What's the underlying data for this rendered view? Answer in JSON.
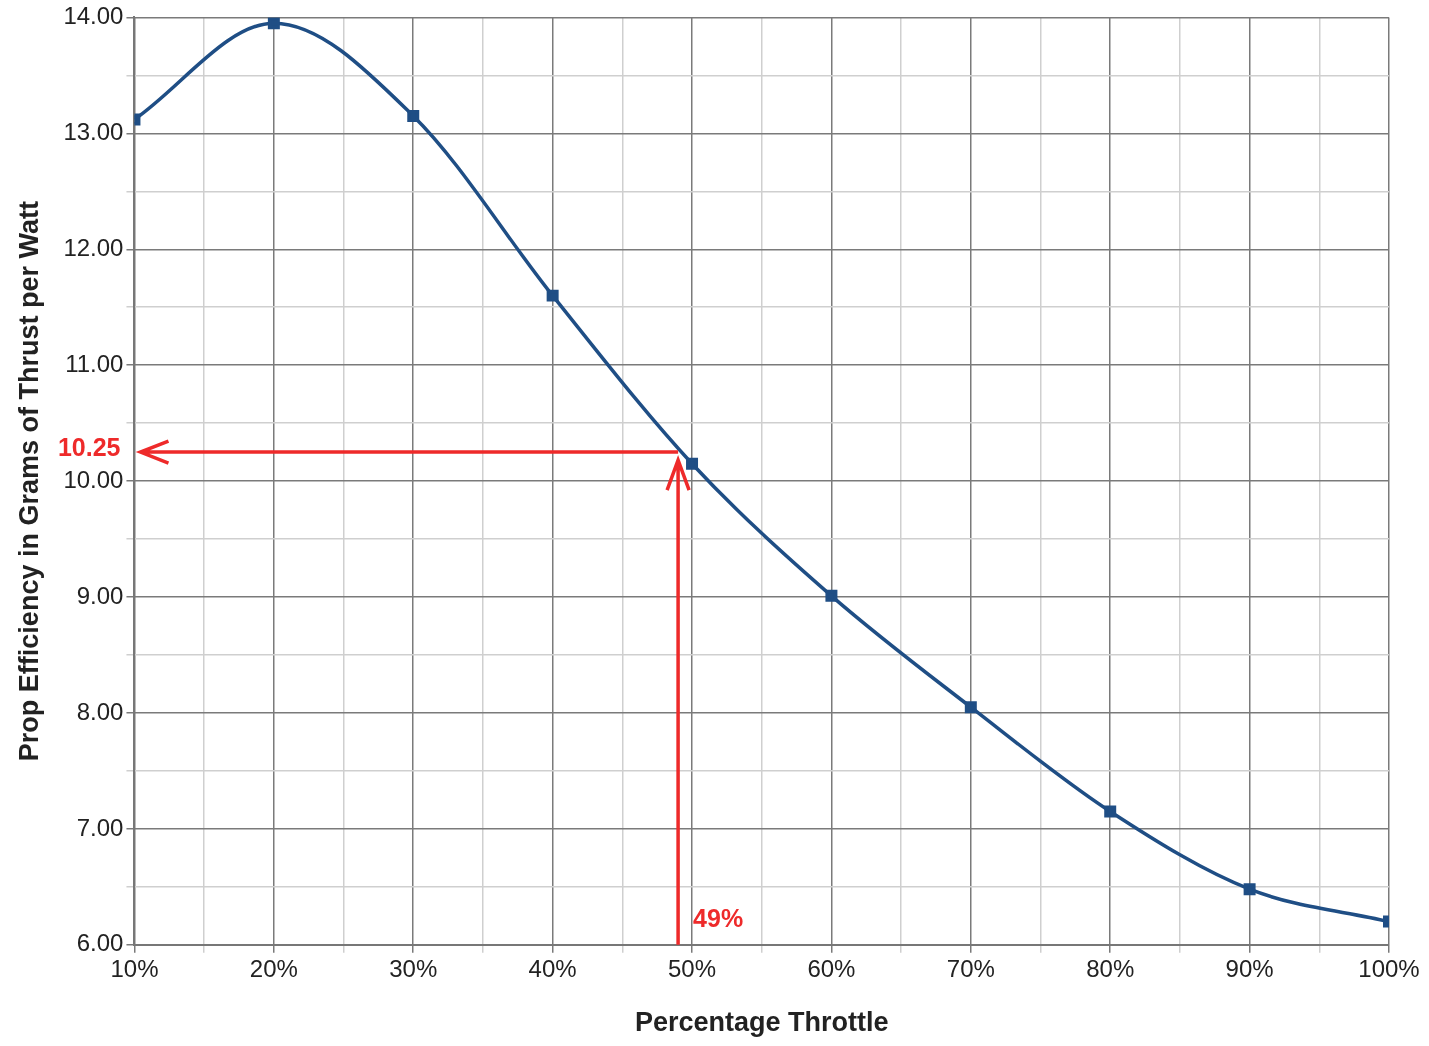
{
  "chart_data": {
    "type": "line",
    "xlabel": "Percentage Throttle",
    "ylabel": "Prop Efficiency in Grams of Thrust per Watt",
    "x": [
      10,
      20,
      30,
      40,
      50,
      60,
      70,
      80,
      90,
      100
    ],
    "series": [
      {
        "color": "#1f4e85",
        "values": [
          13.12,
          13.95,
          13.15,
          11.6,
          10.15,
          9.01,
          8.05,
          7.15,
          6.48,
          6.2
        ]
      }
    ],
    "xlim": [
      10,
      100
    ],
    "ylim": [
      6,
      14
    ],
    "xticks": [
      {
        "value": 10,
        "label": "10%"
      },
      {
        "value": 15,
        "label": null
      },
      {
        "value": 20,
        "label": "20%"
      },
      {
        "value": 25,
        "label": null
      },
      {
        "value": 30,
        "label": "30%"
      },
      {
        "value": 35,
        "label": null
      },
      {
        "value": 40,
        "label": "40%"
      },
      {
        "value": 45,
        "label": null
      },
      {
        "value": 50,
        "label": "50%"
      },
      {
        "value": 55,
        "label": null
      },
      {
        "value": 60,
        "label": "60%"
      },
      {
        "value": 65,
        "label": null
      },
      {
        "value": 70,
        "label": "70%"
      },
      {
        "value": 75,
        "label": null
      },
      {
        "value": 80,
        "label": "80%"
      },
      {
        "value": 85,
        "label": null
      },
      {
        "value": 90,
        "label": "90%"
      },
      {
        "value": 95,
        "label": null
      },
      {
        "value": 100,
        "label": "100%"
      }
    ],
    "yticks": [
      {
        "value": 6,
        "label": "6.00"
      },
      {
        "value": 6.5,
        "label": null
      },
      {
        "value": 7,
        "label": "7.00"
      },
      {
        "value": 7.5,
        "label": null
      },
      {
        "value": 8,
        "label": "8.00"
      },
      {
        "value": 8.5,
        "label": null
      },
      {
        "value": 9,
        "label": "9.00"
      },
      {
        "value": 9.5,
        "label": null
      },
      {
        "value": 10,
        "label": "10.00"
      },
      {
        "value": 10.5,
        "label": null
      },
      {
        "value": 11,
        "label": "11.00"
      },
      {
        "value": 11.5,
        "label": null
      },
      {
        "value": 12,
        "label": "12.00"
      },
      {
        "value": 12.5,
        "label": null
      },
      {
        "value": 13,
        "label": "13.00"
      },
      {
        "value": 13.5,
        "label": null
      },
      {
        "value": 14,
        "label": "14.00"
      }
    ],
    "grid": true,
    "legend": false,
    "marker": "square",
    "line_style": "solid",
    "annotations": [
      {
        "text": "10.25",
        "x": 49,
        "y": 10.25
      },
      "49%"
    ]
  }
}
